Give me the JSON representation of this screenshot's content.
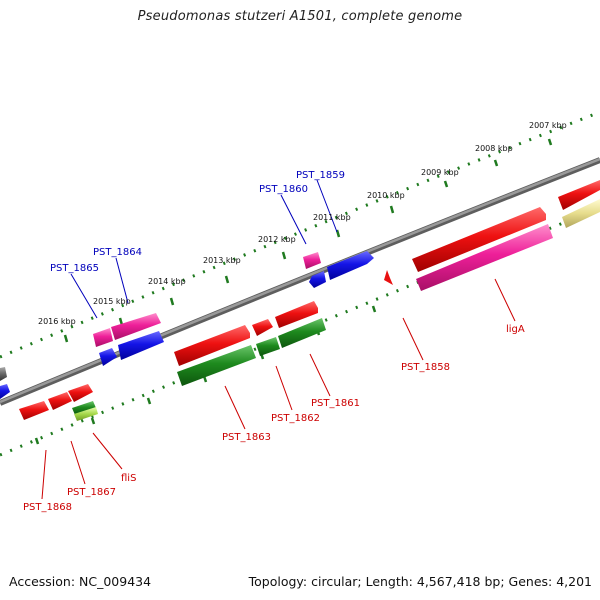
{
  "title": "Pseudomonas stutzeri A1501, complete genome",
  "footer": {
    "accession": "Accession: NC_009434",
    "summary": "Topology: circular; Length: 4,567,418 bp; Genes: 4,201"
  },
  "colors": {
    "backbone": "#8a8a8a",
    "tick_dots": "#1f7a1f",
    "red_gene": "#e81010",
    "pink_gene": "#ef1f9a",
    "blue_gene": "#1414e6",
    "green_gene": "#1e8a1e",
    "khaki_gene": "#e0d890",
    "gray_gene": "#666666",
    "label_red": "#cc0000",
    "label_blue": "#0000bb"
  },
  "scale_labels": [
    "2007 kbp",
    "2008 kbp",
    "2009 kbp",
    "2010 kbp",
    "2011 kbp",
    "2012 kbp",
    "2013 kbp",
    "2014 kbp",
    "2015 kbp",
    "2016 kbp"
  ],
  "gene_labels": [
    {
      "text": "PST_1859",
      "color": "label_blue"
    },
    {
      "text": "PST_1860",
      "color": "label_blue"
    },
    {
      "text": "PST_1864",
      "color": "label_blue"
    },
    {
      "text": "PST_1865",
      "color": "label_blue"
    },
    {
      "text": "ligA",
      "color": "label_red"
    },
    {
      "text": "PST_1858",
      "color": "label_red"
    },
    {
      "text": "PST_1861",
      "color": "label_red"
    },
    {
      "text": "PST_1862",
      "color": "label_red"
    },
    {
      "text": "PST_1863",
      "color": "label_red"
    },
    {
      "text": "fliS",
      "color": "label_red"
    },
    {
      "text": "PST_1867",
      "color": "label_red"
    },
    {
      "text": "PST_1868",
      "color": "label_red"
    }
  ]
}
